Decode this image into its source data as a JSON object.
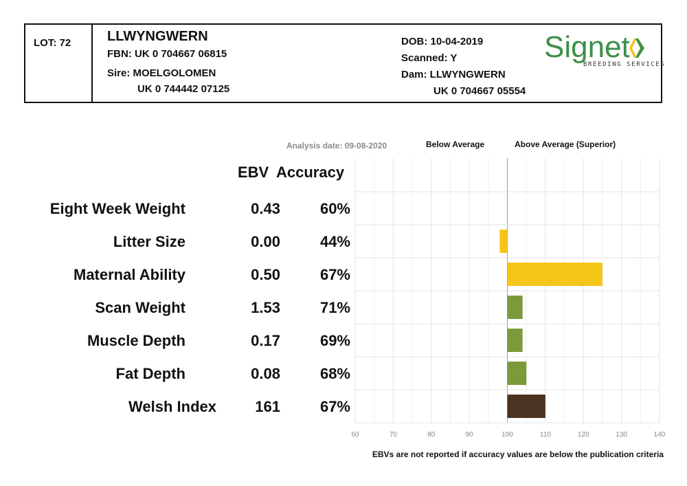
{
  "header": {
    "lot": "LOT: 72",
    "name": "LLWYNGWERN",
    "fbn": "FBN: UK 0 704667 06815",
    "sire_label": "Sire: MOELGOLOMEN",
    "sire_id": "UK 0 744442 07125",
    "dob": "DOB: 10-04-2019",
    "scanned": "Scanned: Y",
    "dam_label": "Dam: LLWYNGWERN",
    "dam_id": "UK 0 704667 05554"
  },
  "logo": {
    "word": "Signet",
    "sub": "BREEDING SERVICES",
    "colors": {
      "green": "#3d8f48",
      "gold": "#f2c318"
    }
  },
  "chart_labels": {
    "analysis_date": "Analysis date: 09-08-2020",
    "below": "Below Average",
    "above": "Above Average (Superior)",
    "col_ebv": "EBV",
    "col_accuracy": "Accuracy"
  },
  "footnote": "EBVs are not reported if accuracy values are below the publication criteria",
  "chart_data": {
    "type": "bar",
    "orientation": "horizontal",
    "baseline": 100,
    "xlim": [
      60,
      140
    ],
    "xticks": [
      "60",
      "70",
      "80",
      "90",
      "100",
      "110",
      "120",
      "130",
      "140"
    ],
    "grid": true,
    "categories": [
      "Eight Week Weight",
      "Litter Size",
      "Maternal Ability",
      "Scan Weight",
      "Muscle Depth",
      "Fat Depth",
      "Welsh Index"
    ],
    "ebv": [
      "0.43",
      "0.00",
      "0.50",
      "1.53",
      "0.17",
      "0.08",
      "161"
    ],
    "accuracy": [
      "60%",
      "44%",
      "67%",
      "71%",
      "69%",
      "68%",
      "67%"
    ],
    "values": [
      null,
      98,
      125,
      104,
      104,
      105,
      110
    ],
    "colors": [
      null,
      "#f5c518",
      "#f5c518",
      "#7c9a3c",
      "#7c9a3c",
      "#7c9a3c",
      "#4a3320"
    ]
  }
}
